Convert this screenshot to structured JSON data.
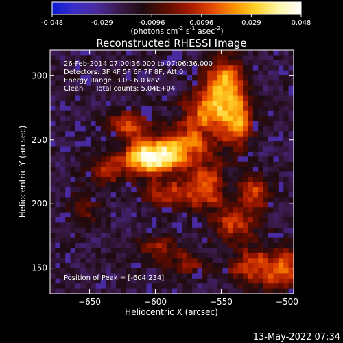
{
  "chart_data": {
    "type": "heatmap",
    "title": "Reconstructed RHESSI Image",
    "xlabel": "Heliocentric X (arcsec)",
    "ylabel": "Heliocentric Y (arcsec)",
    "xlim": [
      -680,
      -495
    ],
    "ylim": [
      130,
      320
    ],
    "xticks": [
      -650,
      -600,
      -550,
      -500
    ],
    "yticks": [
      150,
      200,
      250,
      300
    ],
    "colorbar": {
      "min": -0.048,
      "max": 0.048,
      "ticks": [
        "-0.048",
        "-0.029",
        "-0.0096",
        "0.0096",
        "0.029",
        "0.048"
      ],
      "unit_prefix": "(photons cm",
      "unit_exp1": "-2",
      "unit_mid": " s",
      "unit_exp2": "-1",
      "unit_mid2": " asec",
      "unit_exp3": "-2",
      "unit_suffix": ")",
      "colors": [
        "#0a1ad0",
        "#3b2fc8",
        "#4a2a9c",
        "#3a1a4a",
        "#1e0b10",
        "#5a0c00",
        "#a01800",
        "#e24400",
        "#fb8e00",
        "#ffd22a",
        "#fff6a8",
        "#ffffff"
      ]
    },
    "annotations": {
      "line1": "26-Feb-2014 07:00:36.000 to 07:06:36.000",
      "line2": "Detectors: 3F 4F 5F 6F 7F 8F, Att 0",
      "line3": "Energy Range: 3.0 - 6.0 keV",
      "line4_a": "Clean",
      "line4_b": "Total counts: 5.04E+04",
      "peak": "Position of Peak = [-604,234]"
    },
    "peak_position": [
      -604,
      234
    ],
    "sources": [
      {
        "x": -604,
        "y": 236,
        "amp": 1.0,
        "sx": 14,
        "sy": 9
      },
      {
        "x": -580,
        "y": 243,
        "amp": 0.55,
        "sx": 16,
        "sy": 10
      },
      {
        "x": -548,
        "y": 295,
        "amp": 0.75,
        "sx": 10,
        "sy": 13
      },
      {
        "x": -560,
        "y": 270,
        "amp": 0.6,
        "sx": 14,
        "sy": 12
      },
      {
        "x": -538,
        "y": 265,
        "amp": 0.55,
        "sx": 8,
        "sy": 14
      },
      {
        "x": -620,
        "y": 262,
        "amp": 0.45,
        "sx": 10,
        "sy": 7
      },
      {
        "x": -637,
        "y": 226,
        "amp": 0.4,
        "sx": 10,
        "sy": 8
      },
      {
        "x": -588,
        "y": 208,
        "amp": 0.45,
        "sx": 14,
        "sy": 8
      },
      {
        "x": -560,
        "y": 215,
        "amp": 0.5,
        "sx": 9,
        "sy": 12
      },
      {
        "x": -540,
        "y": 185,
        "amp": 0.45,
        "sx": 12,
        "sy": 10
      },
      {
        "x": -525,
        "y": 210,
        "amp": 0.45,
        "sx": 8,
        "sy": 10
      },
      {
        "x": -505,
        "y": 150,
        "amp": 0.55,
        "sx": 12,
        "sy": 12
      },
      {
        "x": -530,
        "y": 150,
        "amp": 0.4,
        "sx": 10,
        "sy": 10
      },
      {
        "x": -600,
        "y": 165,
        "amp": 0.3,
        "sx": 12,
        "sy": 8
      },
      {
        "x": -575,
        "y": 155,
        "amp": 0.3,
        "sx": 10,
        "sy": 8
      },
      {
        "x": -655,
        "y": 195,
        "amp": 0.25,
        "sx": 8,
        "sy": 10
      }
    ]
  },
  "footer": {
    "date": "13-May-2022 07:34"
  }
}
